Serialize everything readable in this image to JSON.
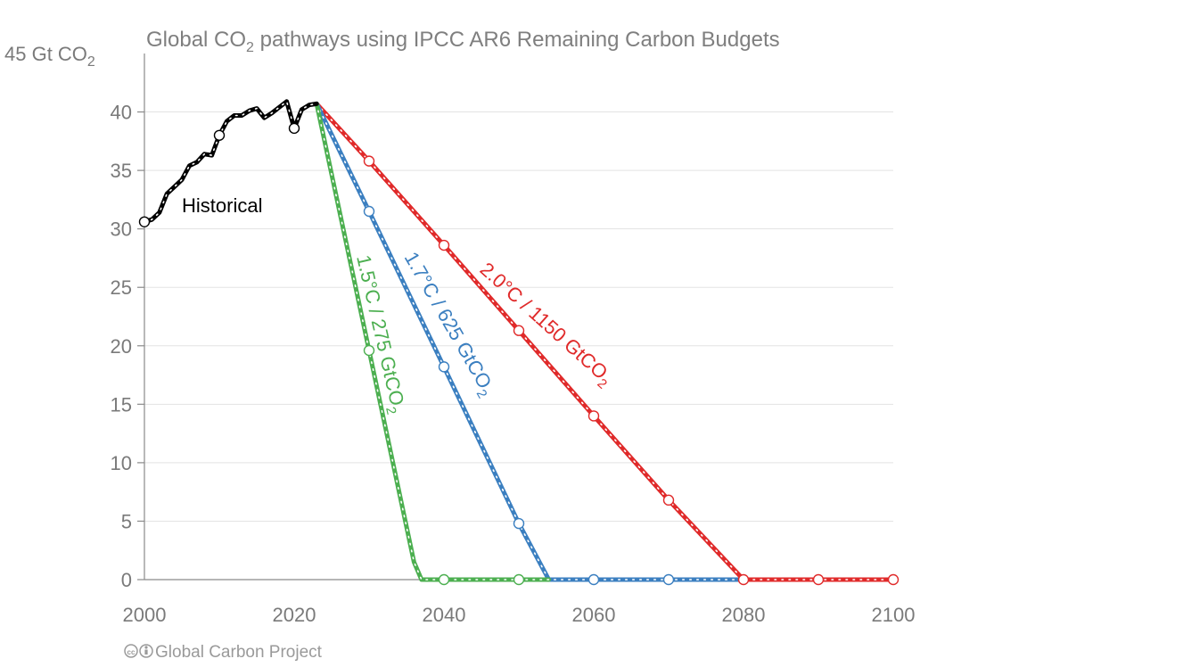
{
  "chart_data": {
    "type": "line",
    "title_parts": [
      "Global CO",
      "2",
      " pathways using IPCC AR6 Remaining Carbon Budgets"
    ],
    "ylabel_parts": [
      "45 Gt CO",
      "2"
    ],
    "xlim": [
      2000,
      2100
    ],
    "ylim": [
      0,
      45
    ],
    "x_ticks": [
      "2000",
      "2020",
      "2040",
      "2060",
      "2080",
      "2100"
    ],
    "y_ticks": [
      "40",
      "35",
      "30",
      "25",
      "20",
      "15",
      "10",
      "5",
      "0"
    ],
    "grid": true,
    "credit": "Global Carbon Project",
    "series": [
      {
        "name": "Historical",
        "color": "#000000",
        "x": [
          2000,
          2001,
          2002,
          2003,
          2004,
          2005,
          2006,
          2007,
          2008,
          2009,
          2010,
          2011,
          2012,
          2013,
          2014,
          2015,
          2016,
          2017,
          2018,
          2019,
          2020,
          2021,
          2022,
          2023
        ],
        "values": [
          30.6,
          30.8,
          31.4,
          33.0,
          33.6,
          34.2,
          35.4,
          35.7,
          36.4,
          36.3,
          38.0,
          39.2,
          39.7,
          39.7,
          40.1,
          40.3,
          39.5,
          39.9,
          40.4,
          40.9,
          38.6,
          40.2,
          40.6,
          40.7
        ],
        "markers_x": [
          2000,
          2010,
          2020
        ]
      },
      {
        "name_parts": [
          "1.5°C / 275 GtCO",
          "2"
        ],
        "color": "#4caf50",
        "x": [
          2023,
          2030,
          2036,
          2037,
          2040,
          2050,
          2054
        ],
        "values": [
          40.7,
          19.6,
          1.5,
          0.0,
          0.0,
          0.0,
          0.0
        ],
        "markers_x": [
          2030,
          2040,
          2050
        ]
      },
      {
        "name_parts": [
          "1.7°C / 625 GtCO",
          "2"
        ],
        "color": "#3b7fc0",
        "x": [
          2023,
          2030,
          2040,
          2050,
          2054,
          2060,
          2070,
          2080
        ],
        "values": [
          40.7,
          31.5,
          18.2,
          4.8,
          0.0,
          0.0,
          0.0,
          0.0
        ],
        "markers_x": [
          2030,
          2040,
          2050,
          2060,
          2070
        ]
      },
      {
        "name_parts": [
          "2.0°C / 1150 GtCO",
          "2"
        ],
        "color": "#e02a2a",
        "x": [
          2023,
          2030,
          2040,
          2050,
          2060,
          2070,
          2080,
          2090,
          2100
        ],
        "values": [
          40.7,
          35.8,
          28.6,
          21.3,
          14.0,
          6.8,
          0.0,
          0.0,
          0.0
        ],
        "markers_x": [
          2030,
          2040,
          2050,
          2060,
          2070,
          2080,
          2090,
          2100
        ]
      }
    ]
  }
}
